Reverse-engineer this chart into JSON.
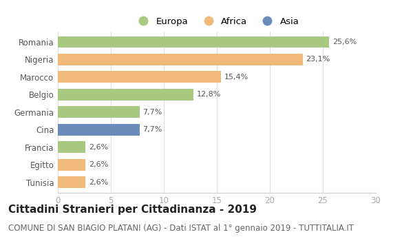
{
  "countries": [
    "Romania",
    "Nigeria",
    "Marocco",
    "Belgio",
    "Germania",
    "Cina",
    "Francia",
    "Egitto",
    "Tunisia"
  ],
  "values": [
    25.6,
    23.1,
    15.4,
    12.8,
    7.7,
    7.7,
    2.6,
    2.6,
    2.6
  ],
  "labels": [
    "25,6%",
    "23,1%",
    "15,4%",
    "12,8%",
    "7,7%",
    "7,7%",
    "2,6%",
    "2,6%",
    "2,6%"
  ],
  "continents": [
    "Europa",
    "Africa",
    "Africa",
    "Europa",
    "Europa",
    "Asia",
    "Europa",
    "Africa",
    "Africa"
  ],
  "colors": {
    "Europa": "#a8c97f",
    "Africa": "#f0b97a",
    "Asia": "#6b8cba"
  },
  "legend_order": [
    "Europa",
    "Africa",
    "Asia"
  ],
  "xlim": [
    0,
    30
  ],
  "xticks": [
    0,
    5,
    10,
    15,
    20,
    25,
    30
  ],
  "title": "Cittadini Stranieri per Cittadinanza - 2019",
  "subtitle": "COMUNE DI SAN BIAGIO PLATANI (AG) - Dati ISTAT al 1° gennaio 2019 - TUTTITALIA.IT",
  "title_fontsize": 11,
  "subtitle_fontsize": 8.5,
  "bg_color": "#ffffff",
  "bar_height": 0.65,
  "label_fontsize": 8,
  "tick_label_fontsize": 8.5,
  "legend_fontsize": 9.5,
  "ytick_color": "#555555",
  "xtick_color": "#aaaaaa",
  "label_color": "#555555",
  "grid_color": "#e0e0e0",
  "spine_color": "#cccccc"
}
